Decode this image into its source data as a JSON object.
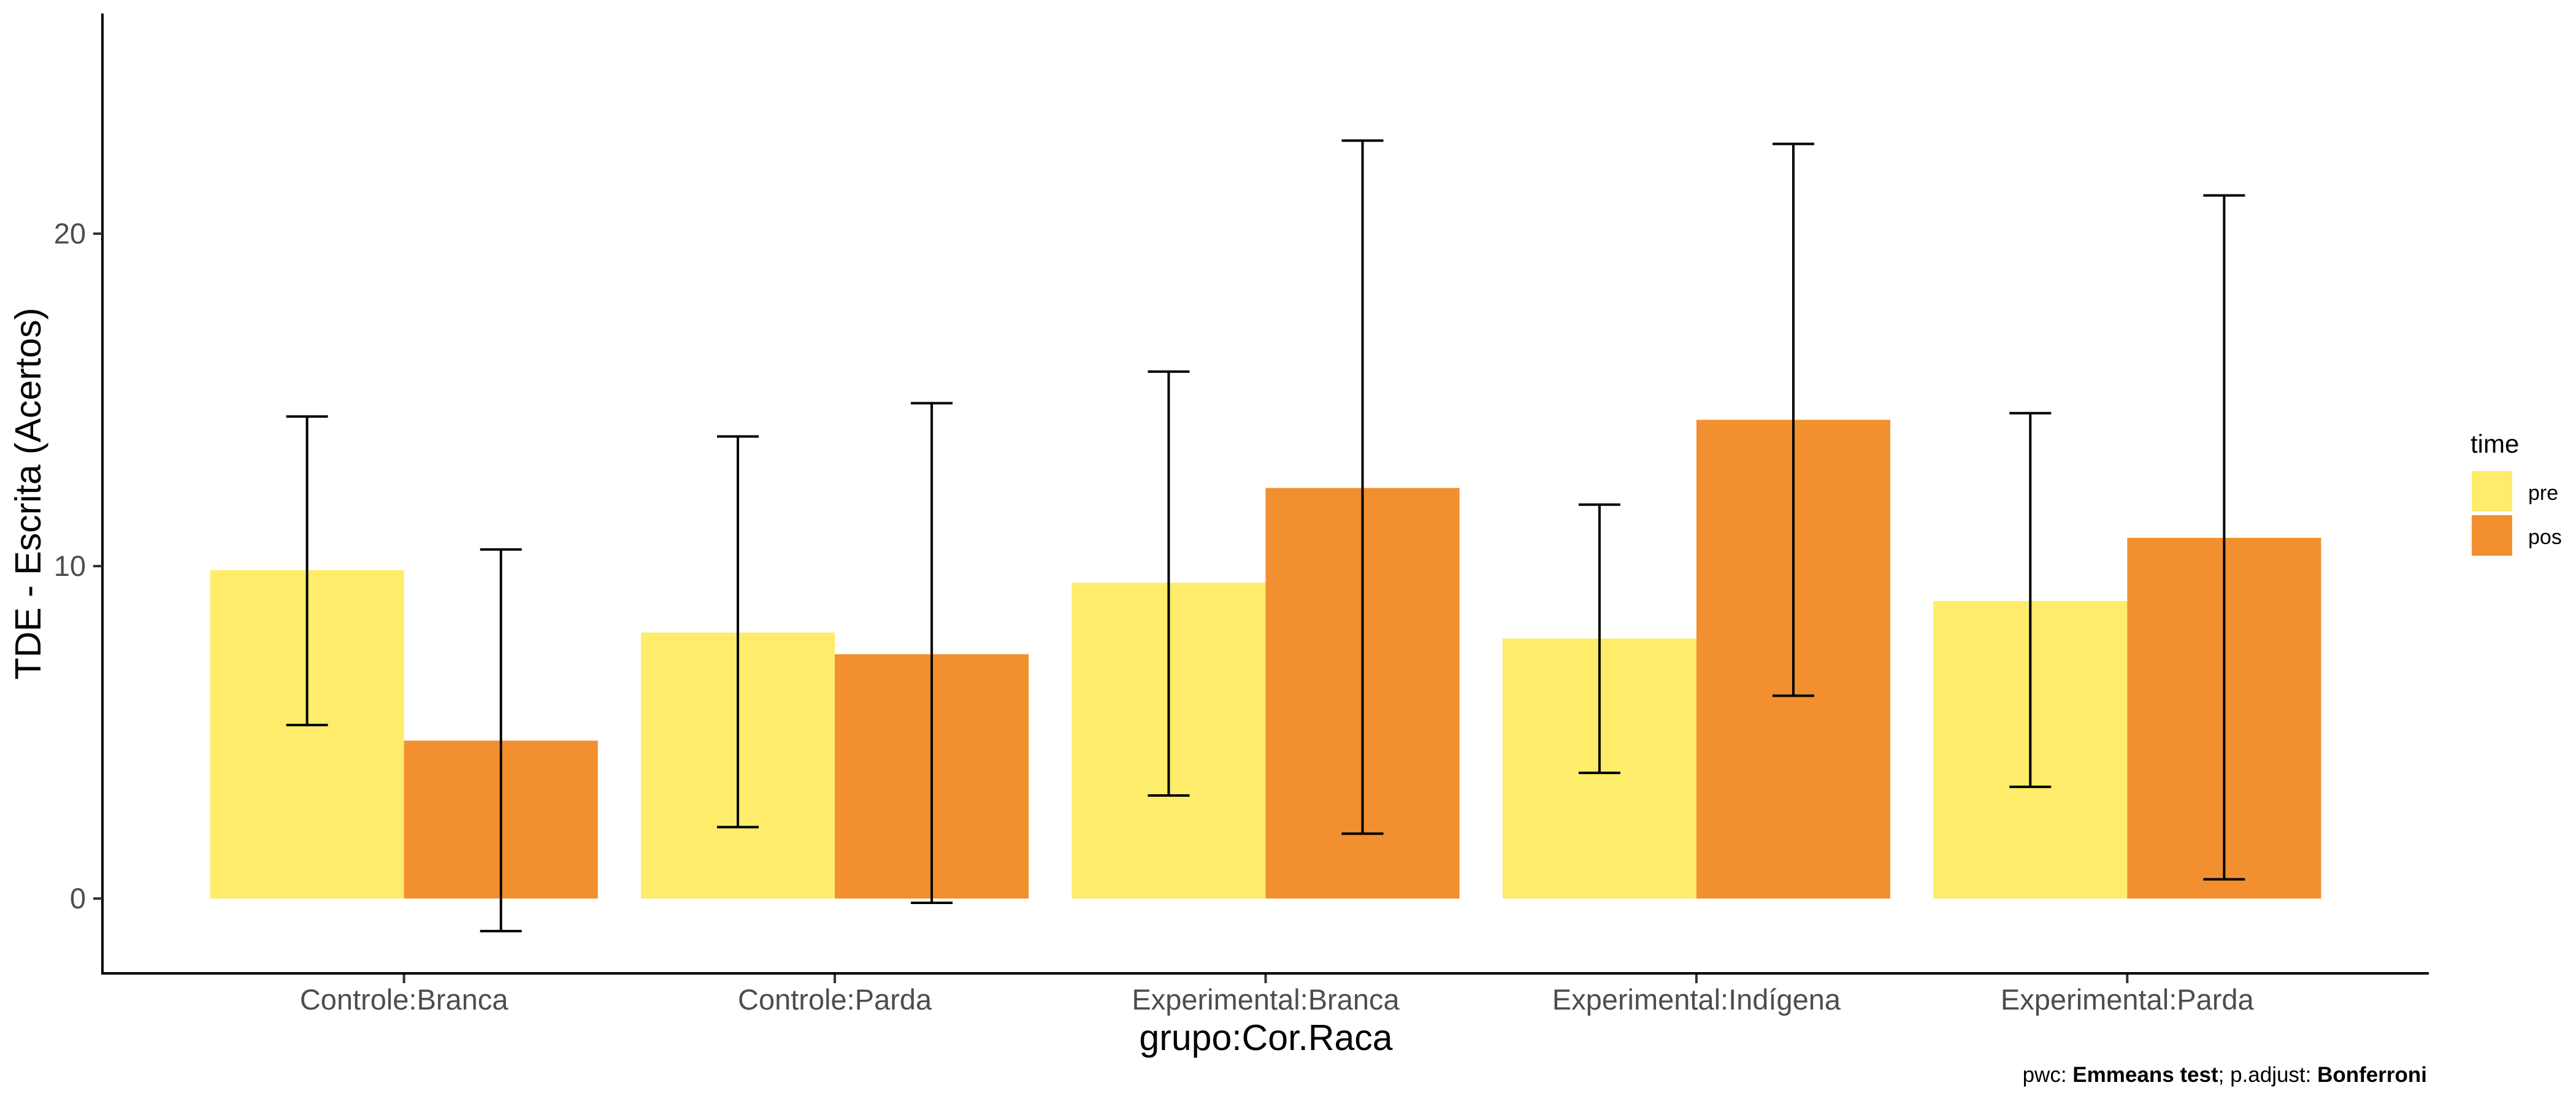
{
  "chart_data": {
    "type": "bar",
    "title": "",
    "xlabel": "grupo:Cor.Raca",
    "ylabel": "TDE - Escrita (Acertos)",
    "ylim": [
      -2.3,
      26.6
    ],
    "yticks": [
      0,
      10,
      20
    ],
    "categories": [
      "Controle:Branca",
      "Controle:Parda",
      "Experimental:Branca",
      "Experimental:Indígena",
      "Experimental:Parda"
    ],
    "legend": {
      "title": "time",
      "position": "right"
    },
    "grid": false,
    "series": [
      {
        "name": "pre",
        "color": "#FEEC6A",
        "values": [
          9.88,
          8.0,
          9.5,
          7.82,
          8.95
        ],
        "error_low": [
          5.22,
          2.15,
          3.1,
          3.78,
          3.36
        ],
        "error_high": [
          14.5,
          13.9,
          15.85,
          11.85,
          14.6
        ]
      },
      {
        "name": "pos",
        "color": "#F28F2E",
        "values": [
          4.75,
          7.35,
          12.35,
          14.4,
          10.85
        ],
        "error_low": [
          -0.98,
          -0.13,
          1.95,
          6.1,
          0.58
        ],
        "error_high": [
          10.5,
          14.9,
          22.8,
          22.7,
          21.15
        ]
      }
    ]
  },
  "caption": {
    "pwc_prefix": "pwc: ",
    "pwc_value": "Emmeans test",
    "adjust_prefix": "; p.adjust: ",
    "adjust_value": "Bonferroni"
  }
}
